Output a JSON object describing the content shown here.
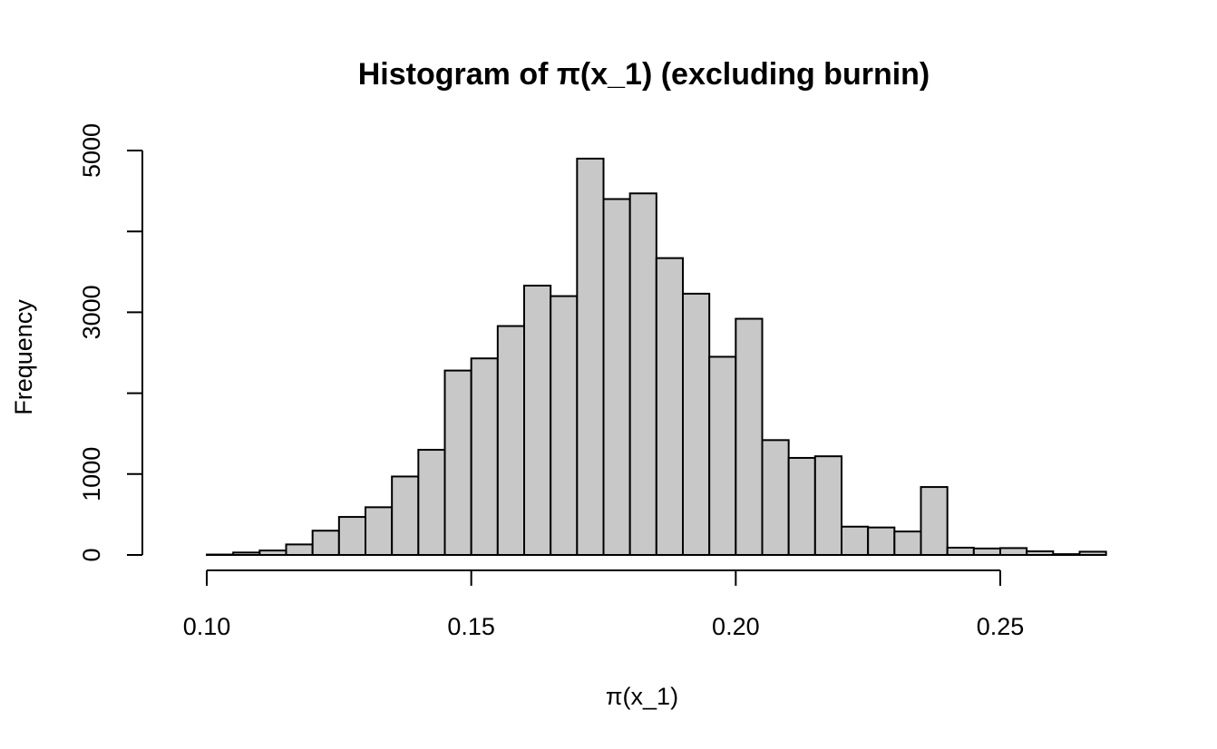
{
  "chart_data": {
    "type": "bar",
    "title": "Histogram of π(x_1) (excluding burnin)",
    "xlabel": "π(x_1)",
    "ylabel": "Frequency",
    "bar_fill": "#c8c8c8",
    "bin_width": 0.005,
    "bin_start": 0.095,
    "values": [
      0,
      5,
      30,
      55,
      130,
      300,
      470,
      590,
      970,
      1300,
      2280,
      2430,
      2830,
      3330,
      3200,
      4900,
      4400,
      4470,
      3670,
      3230,
      2450,
      2920,
      1420,
      1200,
      1220,
      350,
      340,
      290,
      840,
      90,
      80,
      85,
      45,
      10,
      40
    ],
    "xlim": [
      0.095,
      0.27
    ],
    "ylim": [
      0,
      5000
    ],
    "x_ticks": [
      0.1,
      0.15,
      0.2,
      0.25
    ],
    "x_tick_labels": [
      "0.10",
      "0.15",
      "0.20",
      "0.25"
    ],
    "y_ticks": [
      0,
      1000,
      2000,
      3000,
      4000,
      5000
    ],
    "y_tick_labels": [
      "0",
      "1000",
      "",
      "3000",
      "",
      "5000"
    ],
    "grid": false,
    "legend": "none"
  }
}
